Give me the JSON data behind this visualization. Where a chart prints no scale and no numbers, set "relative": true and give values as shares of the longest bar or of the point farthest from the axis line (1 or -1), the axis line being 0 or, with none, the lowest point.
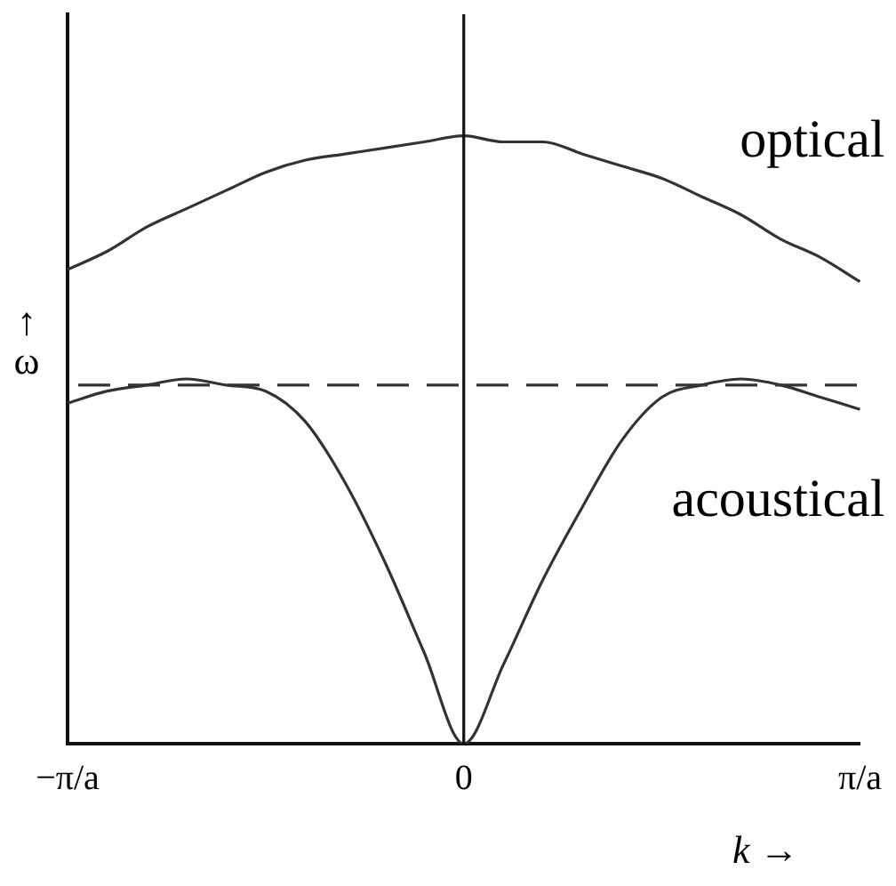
{
  "chart_data": {
    "type": "line",
    "relative": true,
    "xlabel": "k →",
    "ylabel": "↑ ω",
    "categories": [
      "−π/a",
      null,
      null,
      null,
      null,
      null,
      null,
      null,
      null,
      null,
      "0",
      null,
      null,
      null,
      null,
      null,
      null,
      null,
      null,
      null,
      "π/a"
    ],
    "series": [
      {
        "name": "optical",
        "color": "#333333",
        "values": [
          0.78,
          0.81,
          0.85,
          0.88,
          0.91,
          0.94,
          0.96,
          0.97,
          0.98,
          0.99,
          1,
          0.99,
          0.99,
          0.97,
          0.95,
          0.93,
          0.9,
          0.87,
          0.83,
          0.8,
          0.76
        ]
      },
      {
        "name": "acoustical",
        "color": "#333333",
        "values": [
          0.56,
          0.58,
          0.59,
          0.6,
          0.59,
          0.58,
          0.53,
          0.43,
          0.3,
          0.15,
          0,
          0.13,
          0.27,
          0.39,
          0.5,
          0.57,
          0.59,
          0.6,
          0.59,
          0.57,
          0.55
        ]
      }
    ],
    "ref_lines": [
      {
        "axis": "y",
        "value": 0.59,
        "line_style": "dashed",
        "color": "#333333"
      },
      {
        "axis": "x",
        "value": "0",
        "line_style": "solid",
        "color": "#111111"
      }
    ],
    "grid": false,
    "legend": false,
    "marker": "none",
    "line_style": "solid"
  }
}
